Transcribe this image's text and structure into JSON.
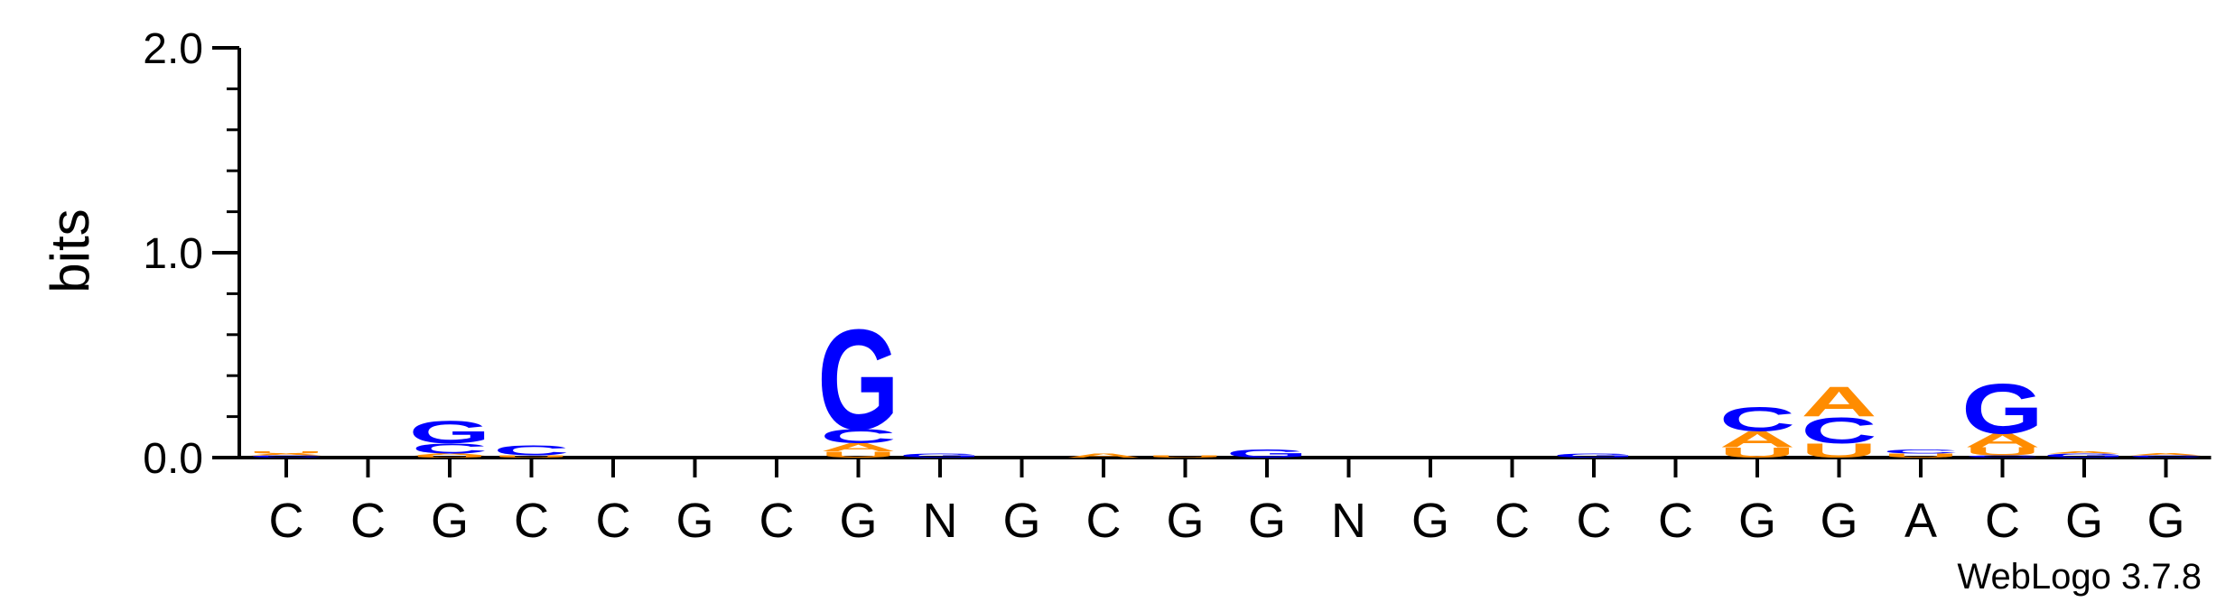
{
  "chart_data": {
    "type": "sequence-logo",
    "ylabel": "bits",
    "ylim": [
      0,
      2.0
    ],
    "yticks": [
      "0.0",
      "1.0",
      "2.0"
    ],
    "positions": [
      "C",
      "C",
      "G",
      "C",
      "C",
      "G",
      "C",
      "G",
      "N",
      "G",
      "C",
      "G",
      "G",
      "N",
      "G",
      "C",
      "C",
      "C",
      "G",
      "G",
      "A",
      "C",
      "G",
      "G"
    ],
    "colors": {
      "G": "#0000ff",
      "C": "#0000ff",
      "A": "#ff8c00",
      "U": "#ff8c00"
    },
    "stacks": [
      [
        {
          "letter": "C",
          "bits": 0.01
        },
        {
          "letter": "A",
          "bits": 0.01
        },
        {
          "letter": "U",
          "bits": 0.01
        }
      ],
      [],
      [
        {
          "letter": "U",
          "bits": 0.01
        },
        {
          "letter": "A",
          "bits": 0.01
        },
        {
          "letter": "C",
          "bits": 0.05
        },
        {
          "letter": "G",
          "bits": 0.11
        }
      ],
      [
        {
          "letter": "U",
          "bits": 0.01
        },
        {
          "letter": "C",
          "bits": 0.05
        }
      ],
      [],
      [],
      [],
      [
        {
          "letter": "U",
          "bits": 0.03
        },
        {
          "letter": "A",
          "bits": 0.04
        },
        {
          "letter": "C",
          "bits": 0.07
        },
        {
          "letter": "G",
          "bits": 0.5
        }
      ],
      [
        {
          "letter": "G",
          "bits": 0.02
        }
      ],
      [],
      [
        {
          "letter": "A",
          "bits": 0.02
        }
      ],
      [
        {
          "letter": "U",
          "bits": 0.01
        }
      ],
      [
        {
          "letter": "G",
          "bits": 0.04
        }
      ],
      [],
      [],
      [],
      [
        {
          "letter": "G",
          "bits": 0.02
        }
      ],
      [],
      [
        {
          "letter": "U",
          "bits": 0.05
        },
        {
          "letter": "A",
          "bits": 0.08
        },
        {
          "letter": "C",
          "bits": 0.12
        }
      ],
      [
        {
          "letter": "U",
          "bits": 0.07
        },
        {
          "letter": "C",
          "bits": 0.13
        },
        {
          "letter": "A",
          "bits": 0.15
        }
      ],
      [
        {
          "letter": "U",
          "bits": 0.02
        },
        {
          "letter": "C",
          "bits": 0.02
        }
      ],
      [
        {
          "letter": "C",
          "bits": 0.01
        },
        {
          "letter": "U",
          "bits": 0.04
        },
        {
          "letter": "A",
          "bits": 0.07
        },
        {
          "letter": "G",
          "bits": 0.25
        }
      ],
      [
        {
          "letter": "G",
          "bits": 0.02
        },
        {
          "letter": "A",
          "bits": 0.01
        }
      ],
      [
        {
          "letter": "C",
          "bits": 0.01
        },
        {
          "letter": "A",
          "bits": 0.01
        }
      ]
    ]
  },
  "credit": "WebLogo 3.7.8"
}
